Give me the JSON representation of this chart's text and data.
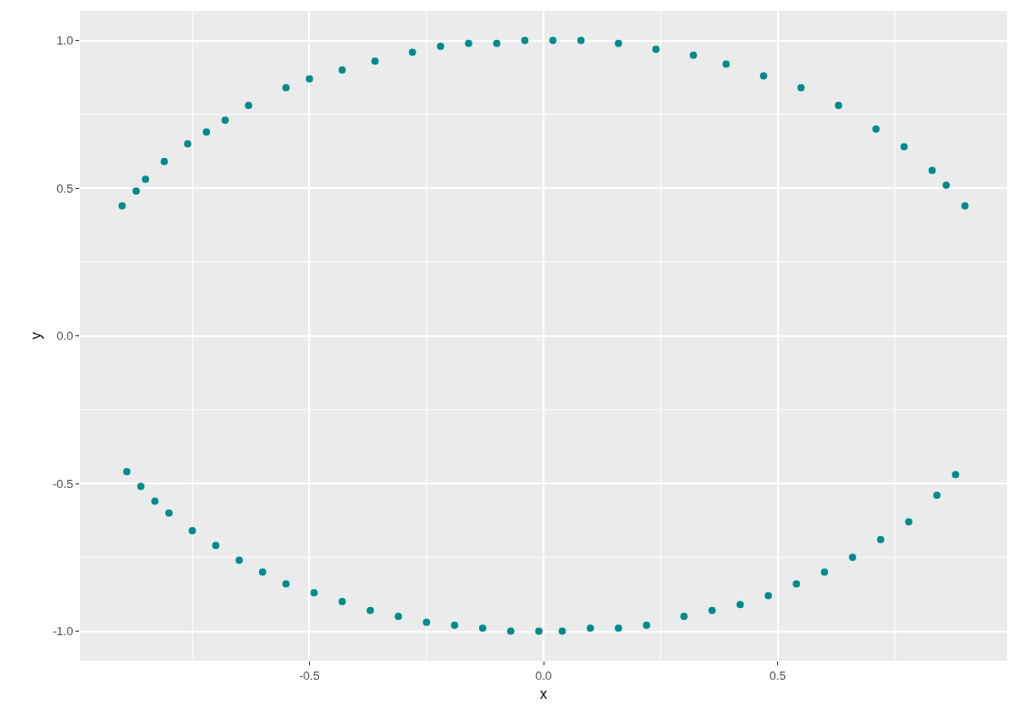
{
  "chart_data": {
    "type": "scatter",
    "xlabel": "x",
    "ylabel": "y",
    "marker": "circle",
    "grid": true,
    "xlim": [
      -0.99,
      0.99
    ],
    "ylim": [
      -1.1,
      1.1
    ],
    "xticks": [
      {
        "value": -0.75,
        "label": null
      },
      {
        "value": -0.5,
        "label": "-0.5"
      },
      {
        "value": -0.25,
        "label": null
      },
      {
        "value": 0,
        "label": "0.0"
      },
      {
        "value": 0.25,
        "label": null
      },
      {
        "value": 0.5,
        "label": "0.5"
      },
      {
        "value": 0.75,
        "label": null
      }
    ],
    "yticks": [
      {
        "value": -1,
        "label": "-1.0"
      },
      {
        "value": -0.75,
        "label": null
      },
      {
        "value": -0.5,
        "label": "-0.5"
      },
      {
        "value": -0.25,
        "label": null
      },
      {
        "value": 0,
        "label": "0.0"
      },
      {
        "value": 0.25,
        "label": null
      },
      {
        "value": 0.5,
        "label": "0.5"
      },
      {
        "value": 0.75,
        "label": null
      },
      {
        "value": 1,
        "label": "1.0"
      }
    ],
    "series": [
      {
        "color": "#008b8b",
        "x": [
          -0.9,
          -0.87,
          -0.85,
          -0.81,
          -0.76,
          -0.72,
          -0.68,
          -0.63,
          -0.55,
          -0.5,
          -0.43,
          -0.36,
          -0.28,
          -0.22,
          -0.16,
          -0.1,
          -0.04,
          0.02,
          0.08,
          0.16,
          0.24,
          0.32,
          0.39,
          0.47,
          0.55,
          0.63,
          0.71,
          0.77,
          0.83,
          0.86,
          0.9,
          -0.89,
          -0.86,
          -0.83,
          -0.8,
          -0.75,
          -0.7,
          -0.65,
          -0.6,
          -0.55,
          -0.49,
          -0.43,
          -0.37,
          -0.31,
          -0.25,
          -0.19,
          -0.13,
          -0.07,
          -0.01,
          0.04,
          0.1,
          0.16,
          0.22,
          0.3,
          0.36,
          0.42,
          0.48,
          0.54,
          0.6,
          0.66,
          0.72,
          0.78,
          0.84,
          0.88
        ],
        "values": [
          0.44,
          0.49,
          0.53,
          0.59,
          0.65,
          0.69,
          0.73,
          0.78,
          0.84,
          0.87,
          0.9,
          0.93,
          0.96,
          0.98,
          0.99,
          0.99,
          1.0,
          1.0,
          1.0,
          0.99,
          0.97,
          0.95,
          0.92,
          0.88,
          0.84,
          0.78,
          0.7,
          0.64,
          0.56,
          0.51,
          0.44,
          -0.46,
          -0.51,
          -0.56,
          -0.6,
          -0.66,
          -0.71,
          -0.76,
          -0.8,
          -0.84,
          -0.87,
          -0.9,
          -0.93,
          -0.95,
          -0.97,
          -0.98,
          -0.99,
          -1.0,
          -1.0,
          -1.0,
          -0.99,
          -0.99,
          -0.98,
          -0.95,
          -0.93,
          -0.91,
          -0.88,
          -0.84,
          -0.8,
          -0.75,
          -0.69,
          -0.63,
          -0.54,
          -0.47
        ]
      }
    ]
  }
}
